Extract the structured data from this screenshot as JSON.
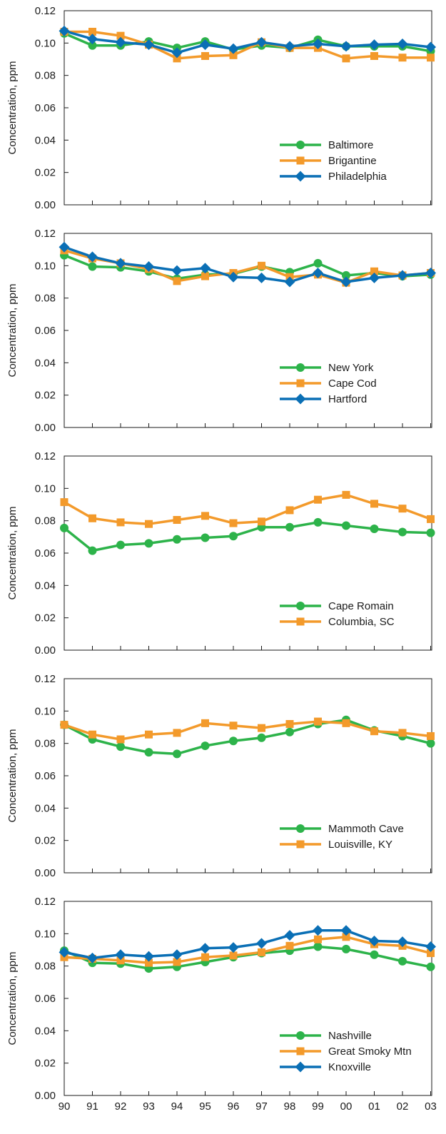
{
  "colors": {
    "green": "#2db34a",
    "orange": "#f39a2b",
    "blue": "#0a6fb5"
  },
  "chart_data": [
    {
      "type": "line",
      "ylabel": "Concentration, ppm",
      "ylim": [
        0,
        0.12
      ],
      "yticks": [
        "0.00",
        "0.02",
        "0.04",
        "0.06",
        "0.08",
        "0.10",
        "0.12"
      ],
      "xticks": [
        "90",
        "91",
        "92",
        "93",
        "94",
        "95",
        "96",
        "97",
        "98",
        "99",
        "00",
        "01",
        "02",
        "03"
      ],
      "xtick_labels_shown": false,
      "legend_position": "lower-right",
      "series": [
        {
          "name": "Baltimore",
          "marker": "circle",
          "color": "#2db34a",
          "values": [
            0.106,
            0.0985,
            0.0985,
            0.101,
            0.097,
            0.101,
            0.096,
            0.0985,
            0.097,
            0.102,
            0.098,
            0.098,
            0.098,
            0.095
          ]
        },
        {
          "name": "Brigantine",
          "marker": "square",
          "color": "#f39a2b",
          "values": [
            0.107,
            0.107,
            0.1045,
            0.099,
            0.0905,
            0.092,
            0.0925,
            0.1005,
            0.097,
            0.097,
            0.0905,
            0.092,
            0.091,
            0.091
          ]
        },
        {
          "name": "Philadelphia",
          "marker": "diamond",
          "color": "#0a6fb5",
          "values": [
            0.1075,
            0.1025,
            0.1005,
            0.099,
            0.094,
            0.099,
            0.0965,
            0.1005,
            0.098,
            0.0995,
            0.098,
            0.099,
            0.0995,
            0.0975
          ]
        }
      ]
    },
    {
      "type": "line",
      "ylabel": "Concentration, ppm",
      "ylim": [
        0,
        0.12
      ],
      "yticks": [
        "0.00",
        "0.02",
        "0.04",
        "0.06",
        "0.08",
        "0.10",
        "0.12"
      ],
      "xticks": [
        "90",
        "91",
        "92",
        "93",
        "94",
        "95",
        "96",
        "97",
        "98",
        "99",
        "00",
        "01",
        "02",
        "03"
      ],
      "xtick_labels_shown": false,
      "legend_position": "lower-right",
      "series": [
        {
          "name": "New York",
          "marker": "circle",
          "color": "#2db34a",
          "values": [
            0.1065,
            0.0995,
            0.099,
            0.0965,
            0.092,
            0.0945,
            0.095,
            0.0995,
            0.096,
            0.1015,
            0.094,
            0.0955,
            0.0935,
            0.0945
          ]
        },
        {
          "name": "Cape Cod",
          "marker": "square",
          "color": "#f39a2b",
          "values": [
            0.1095,
            0.1045,
            0.1015,
            0.098,
            0.0905,
            0.0935,
            0.0955,
            0.1,
            0.093,
            0.0945,
            0.0895,
            0.0965,
            0.094,
            0.0955
          ]
        },
        {
          "name": "Hartford",
          "marker": "diamond",
          "color": "#0a6fb5",
          "values": [
            0.1115,
            0.1055,
            0.1015,
            0.0995,
            0.097,
            0.0985,
            0.093,
            0.0925,
            0.09,
            0.0955,
            0.09,
            0.0925,
            0.094,
            0.0955
          ]
        }
      ]
    },
    {
      "type": "line",
      "ylabel": "Concentration, ppm",
      "ylim": [
        0,
        0.12
      ],
      "yticks": [
        "0.00",
        "0.02",
        "0.04",
        "0.06",
        "0.08",
        "0.10",
        "0.12"
      ],
      "xticks": [
        "90",
        "91",
        "92",
        "93",
        "94",
        "95",
        "96",
        "97",
        "98",
        "99",
        "00",
        "01",
        "02",
        "03"
      ],
      "xtick_labels_shown": false,
      "legend_position": "lower-right",
      "series": [
        {
          "name": "Cape Romain",
          "marker": "circle",
          "color": "#2db34a",
          "values": [
            0.0755,
            0.0615,
            0.065,
            0.066,
            0.0685,
            0.0695,
            0.0705,
            0.076,
            0.076,
            0.079,
            0.077,
            0.075,
            0.073,
            0.0725
          ]
        },
        {
          "name": "Columbia, SC",
          "marker": "square",
          "color": "#f39a2b",
          "values": [
            0.0915,
            0.0815,
            0.079,
            0.078,
            0.0805,
            0.083,
            0.0785,
            0.0795,
            0.0865,
            0.093,
            0.096,
            0.0905,
            0.0875,
            0.081
          ]
        }
      ]
    },
    {
      "type": "line",
      "ylabel": "Concentration, ppm",
      "ylim": [
        0,
        0.12
      ],
      "yticks": [
        "0.00",
        "0.02",
        "0.04",
        "0.06",
        "0.08",
        "0.10",
        "0.12"
      ],
      "xticks": [
        "90",
        "91",
        "92",
        "93",
        "94",
        "95",
        "96",
        "97",
        "98",
        "99",
        "00",
        "01",
        "02",
        "03"
      ],
      "xtick_labels_shown": false,
      "legend_position": "lower-right",
      "series": [
        {
          "name": "Mammoth Cave",
          "marker": "circle",
          "color": "#2db34a",
          "values": [
            0.0915,
            0.0825,
            0.078,
            0.0745,
            0.0735,
            0.0785,
            0.0815,
            0.0835,
            0.087,
            0.092,
            0.0945,
            0.088,
            0.0845,
            0.08
          ]
        },
        {
          "name": "Louisville, KY",
          "marker": "square",
          "color": "#f39a2b",
          "values": [
            0.0915,
            0.0855,
            0.0825,
            0.0855,
            0.0865,
            0.0925,
            0.091,
            0.0895,
            0.092,
            0.0935,
            0.0925,
            0.0875,
            0.0865,
            0.0845
          ]
        }
      ]
    },
    {
      "type": "line",
      "ylabel": "Concentration, ppm",
      "ylim": [
        0,
        0.12
      ],
      "yticks": [
        "0.00",
        "0.02",
        "0.04",
        "0.06",
        "0.08",
        "0.10",
        "0.12"
      ],
      "xticks": [
        "90",
        "91",
        "92",
        "93",
        "94",
        "95",
        "96",
        "97",
        "98",
        "99",
        "00",
        "01",
        "02",
        "03"
      ],
      "xtick_labels_shown": true,
      "legend_position": "lower-right",
      "series": [
        {
          "name": "Nashville",
          "marker": "circle",
          "color": "#2db34a",
          "values": [
            0.0895,
            0.082,
            0.0815,
            0.0785,
            0.0795,
            0.0825,
            0.0855,
            0.088,
            0.0895,
            0.092,
            0.0905,
            0.087,
            0.083,
            0.0795
          ]
        },
        {
          "name": "Great Smoky Mtn",
          "marker": "square",
          "color": "#f39a2b",
          "values": [
            0.0855,
            0.0845,
            0.0835,
            0.082,
            0.0825,
            0.0855,
            0.0865,
            0.0885,
            0.0925,
            0.0965,
            0.098,
            0.0935,
            0.0925,
            0.088
          ]
        },
        {
          "name": "Knoxville",
          "marker": "diamond",
          "color": "#0a6fb5",
          "values": [
            0.0885,
            0.085,
            0.087,
            0.086,
            0.087,
            0.091,
            0.0915,
            0.094,
            0.099,
            0.102,
            0.102,
            0.0955,
            0.095,
            0.092
          ]
        }
      ]
    }
  ]
}
